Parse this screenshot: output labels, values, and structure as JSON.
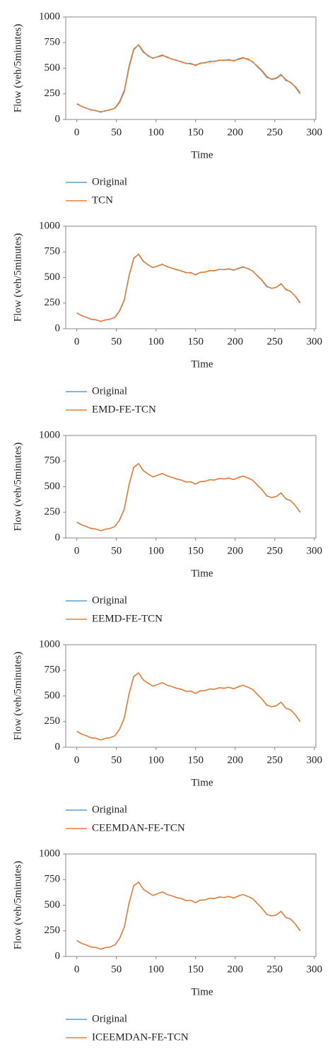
{
  "chart_data": [
    {
      "type": "line",
      "x_label": "Time",
      "y_label": "Flow (veh/5minutes)",
      "xlim": [
        -14,
        302
      ],
      "xticks": [
        0,
        50,
        100,
        150,
        200,
        250,
        300
      ],
      "ylim": [
        0,
        1000
      ],
      "yticks": [
        0,
        250,
        500,
        750,
        1000
      ],
      "x": [
        0,
        6,
        12,
        18,
        24,
        30,
        36,
        42,
        48,
        54,
        60,
        66,
        72,
        78,
        84,
        90,
        96,
        102,
        108,
        114,
        120,
        126,
        132,
        138,
        144,
        150,
        156,
        162,
        168,
        174,
        180,
        186,
        192,
        198,
        204,
        210,
        216,
        222,
        228,
        234,
        240,
        246,
        252,
        258,
        264,
        270,
        276,
        282
      ],
      "series": [
        {
          "name": "Original",
          "color": "#5b9bd5",
          "values": [
            155,
            128,
            112,
            92,
            88,
            70,
            86,
            92,
            112,
            175,
            285,
            520,
            690,
            725,
            655,
            625,
            595,
            612,
            630,
            605,
            592,
            575,
            565,
            545,
            548,
            525,
            550,
            552,
            568,
            565,
            580,
            575,
            585,
            570,
            590,
            605,
            585,
            565,
            515,
            470,
            410,
            395,
            405,
            440,
            380,
            365,
            315,
            250
          ]
        },
        {
          "name": "TCN",
          "color": "#ed7d31",
          "values": [
            150,
            130,
            108,
            96,
            84,
            76,
            82,
            96,
            108,
            165,
            270,
            505,
            680,
            730,
            665,
            618,
            600,
            608,
            622,
            612,
            588,
            580,
            560,
            550,
            540,
            532,
            545,
            556,
            562,
            570,
            575,
            580,
            578,
            576,
            584,
            598,
            592,
            560,
            522,
            478,
            420,
            390,
            400,
            432,
            392,
            358,
            322,
            262
          ]
        }
      ]
    },
    {
      "type": "line",
      "x_label": "Time",
      "y_label": "Flow (veh/5minutes)",
      "xlim": [
        -14,
        302
      ],
      "xticks": [
        0,
        50,
        100,
        150,
        200,
        250,
        300
      ],
      "ylim": [
        0,
        1000
      ],
      "yticks": [
        0,
        250,
        500,
        750,
        1000
      ],
      "x": [
        0,
        6,
        12,
        18,
        24,
        30,
        36,
        42,
        48,
        54,
        60,
        66,
        72,
        78,
        84,
        90,
        96,
        102,
        108,
        114,
        120,
        126,
        132,
        138,
        144,
        150,
        156,
        162,
        168,
        174,
        180,
        186,
        192,
        198,
        204,
        210,
        216,
        222,
        228,
        234,
        240,
        246,
        252,
        258,
        264,
        270,
        276,
        282
      ],
      "series": [
        {
          "name": "Original",
          "color": "#5b9bd5",
          "values": [
            155,
            128,
            112,
            92,
            88,
            70,
            86,
            92,
            112,
            175,
            285,
            520,
            690,
            725,
            655,
            625,
            595,
            612,
            630,
            605,
            592,
            575,
            565,
            545,
            548,
            525,
            550,
            552,
            568,
            565,
            580,
            575,
            585,
            570,
            590,
            605,
            585,
            565,
            515,
            470,
            410,
            395,
            405,
            440,
            380,
            365,
            315,
            250
          ]
        },
        {
          "name": "EMD-FE-TCN",
          "color": "#ed7d31",
          "values": [
            152,
            129,
            110,
            94,
            86,
            73,
            84,
            94,
            110,
            170,
            278,
            512,
            685,
            728,
            660,
            622,
            598,
            610,
            626,
            608,
            590,
            578,
            562,
            548,
            544,
            528,
            548,
            554,
            565,
            568,
            578,
            577,
            582,
            573,
            587,
            601,
            588,
            563,
            518,
            474,
            415,
            393,
            403,
            436,
            386,
            362,
            318,
            256
          ]
        }
      ]
    },
    {
      "type": "line",
      "x_label": "Time",
      "y_label": "Flow (veh/5minutes)",
      "xlim": [
        -14,
        302
      ],
      "xticks": [
        0,
        50,
        100,
        150,
        200,
        250,
        300
      ],
      "ylim": [
        0,
        1000
      ],
      "yticks": [
        0,
        250,
        500,
        750,
        1000
      ],
      "x": [
        0,
        6,
        12,
        18,
        24,
        30,
        36,
        42,
        48,
        54,
        60,
        66,
        72,
        78,
        84,
        90,
        96,
        102,
        108,
        114,
        120,
        126,
        132,
        138,
        144,
        150,
        156,
        162,
        168,
        174,
        180,
        186,
        192,
        198,
        204,
        210,
        216,
        222,
        228,
        234,
        240,
        246,
        252,
        258,
        264,
        270,
        276,
        282
      ],
      "series": [
        {
          "name": "Original",
          "color": "#5b9bd5",
          "values": [
            155,
            128,
            112,
            92,
            88,
            70,
            86,
            92,
            112,
            175,
            285,
            520,
            690,
            725,
            655,
            625,
            595,
            612,
            630,
            605,
            592,
            575,
            565,
            545,
            548,
            525,
            550,
            552,
            568,
            565,
            580,
            575,
            585,
            570,
            590,
            605,
            585,
            565,
            515,
            470,
            410,
            395,
            405,
            440,
            380,
            365,
            315,
            250
          ]
        },
        {
          "name": "EEMD-FE-TCN",
          "color": "#ed7d31",
          "values": [
            154,
            128,
            111,
            93,
            87,
            71,
            85,
            93,
            111,
            173,
            282,
            517,
            688,
            726,
            657,
            624,
            596,
            611,
            628,
            606,
            591,
            576,
            564,
            546,
            546,
            526,
            549,
            553,
            567,
            566,
            579,
            576,
            584,
            571,
            589,
            603,
            586,
            564,
            516,
            472,
            412,
            394,
            404,
            438,
            383,
            364,
            316,
            253
          ]
        }
      ]
    },
    {
      "type": "line",
      "x_label": "Time",
      "y_label": "Flow (veh/5minutes)",
      "xlim": [
        -14,
        302
      ],
      "xticks": [
        0,
        50,
        100,
        150,
        200,
        250,
        300
      ],
      "ylim": [
        0,
        1000
      ],
      "yticks": [
        0,
        250,
        500,
        750,
        1000
      ],
      "x": [
        0,
        6,
        12,
        18,
        24,
        30,
        36,
        42,
        48,
        54,
        60,
        66,
        72,
        78,
        84,
        90,
        96,
        102,
        108,
        114,
        120,
        126,
        132,
        138,
        144,
        150,
        156,
        162,
        168,
        174,
        180,
        186,
        192,
        198,
        204,
        210,
        216,
        222,
        228,
        234,
        240,
        246,
        252,
        258,
        264,
        270,
        276,
        282
      ],
      "series": [
        {
          "name": "Original",
          "color": "#5b9bd5",
          "values": [
            155,
            128,
            112,
            92,
            88,
            70,
            86,
            92,
            112,
            175,
            285,
            520,
            690,
            725,
            655,
            625,
            595,
            612,
            630,
            605,
            592,
            575,
            565,
            545,
            548,
            525,
            550,
            552,
            568,
            565,
            580,
            575,
            585,
            570,
            590,
            605,
            585,
            565,
            515,
            470,
            410,
            395,
            405,
            440,
            380,
            365,
            315,
            250
          ]
        },
        {
          "name": "CEEMDAN-FE-TCN",
          "color": "#ed7d31",
          "values": [
            155,
            128,
            112,
            92,
            88,
            70,
            86,
            92,
            112,
            174,
            284,
            519,
            689,
            725,
            656,
            625,
            595,
            612,
            629,
            605,
            592,
            575,
            565,
            545,
            547,
            525,
            550,
            552,
            568,
            565,
            580,
            575,
            585,
            570,
            590,
            604,
            585,
            565,
            515,
            470,
            411,
            395,
            405,
            439,
            381,
            365,
            315,
            251
          ]
        }
      ]
    },
    {
      "type": "line",
      "x_label": "Time",
      "y_label": "Flow (veh/5minutes)",
      "xlim": [
        -14,
        302
      ],
      "xticks": [
        0,
        50,
        100,
        150,
        200,
        250,
        300
      ],
      "ylim": [
        0,
        1000
      ],
      "yticks": [
        0,
        250,
        500,
        750,
        1000
      ],
      "x": [
        0,
        6,
        12,
        18,
        24,
        30,
        36,
        42,
        48,
        54,
        60,
        66,
        72,
        78,
        84,
        90,
        96,
        102,
        108,
        114,
        120,
        126,
        132,
        138,
        144,
        150,
        156,
        162,
        168,
        174,
        180,
        186,
        192,
        198,
        204,
        210,
        216,
        222,
        228,
        234,
        240,
        246,
        252,
        258,
        264,
        270,
        276,
        282
      ],
      "series": [
        {
          "name": "Original",
          "color": "#5b9bd5",
          "values": [
            155,
            128,
            112,
            92,
            88,
            70,
            86,
            92,
            112,
            175,
            285,
            520,
            690,
            725,
            655,
            625,
            595,
            612,
            630,
            605,
            592,
            575,
            565,
            545,
            548,
            525,
            550,
            552,
            568,
            565,
            580,
            575,
            585,
            570,
            590,
            605,
            585,
            565,
            515,
            470,
            410,
            395,
            405,
            440,
            380,
            365,
            315,
            250
          ]
        },
        {
          "name": "ICEEMDAN-FE-TCN",
          "color": "#ed7d31",
          "values": [
            155,
            128,
            112,
            92,
            88,
            71,
            86,
            92,
            112,
            175,
            285,
            520,
            690,
            726,
            655,
            625,
            595,
            612,
            630,
            605,
            592,
            575,
            565,
            545,
            548,
            525,
            550,
            552,
            568,
            565,
            580,
            575,
            585,
            570,
            590,
            605,
            585,
            565,
            515,
            470,
            410,
            395,
            405,
            440,
            381,
            365,
            315,
            251
          ]
        }
      ]
    }
  ]
}
